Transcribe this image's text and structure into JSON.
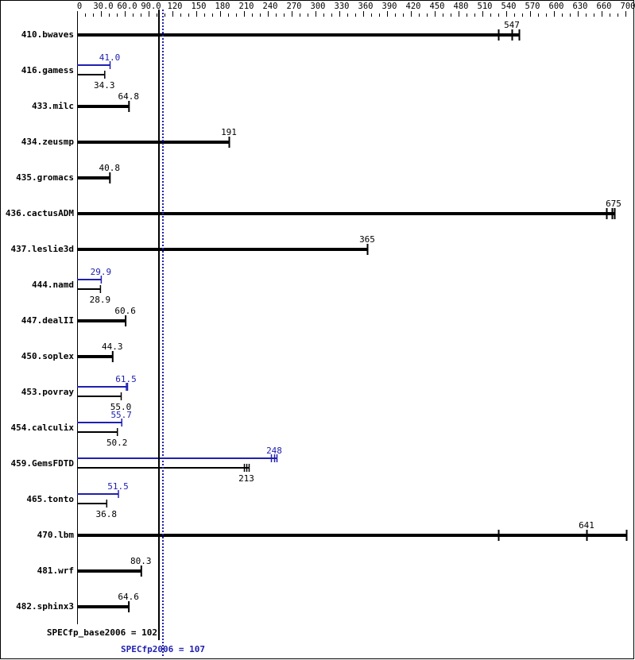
{
  "chart_data": {
    "type": "bar",
    "orientation": "horizontal",
    "xlim": [
      0,
      700
    ],
    "axis_position": "top",
    "axis_ticks": [
      "0",
      "30.0",
      "60.0",
      "90.0",
      "120",
      "150",
      "180",
      "210",
      "240",
      "270",
      "300",
      "330",
      "360",
      "390",
      "420",
      "450",
      "480",
      "510",
      "540",
      "570",
      "600",
      "630",
      "660",
      "700"
    ],
    "colors": {
      "base": "#000000",
      "peak": "#2020b0"
    },
    "benchmarks": [
      {
        "name": "410.bwaves",
        "base": 547,
        "base_label": "547",
        "base_runs": [
          530,
          547,
          556
        ]
      },
      {
        "name": "416.gamess",
        "base": 34.3,
        "base_label": "34.3",
        "peak": 41.0,
        "peak_label": "41.0"
      },
      {
        "name": "433.milc",
        "base": 64.8,
        "base_label": "64.8"
      },
      {
        "name": "434.zeusmp",
        "base": 191,
        "base_label": "191"
      },
      {
        "name": "435.gromacs",
        "base": 40.8,
        "base_label": "40.8"
      },
      {
        "name": "436.cactusADM",
        "base": 675,
        "base_label": "675",
        "base_runs": [
          666,
          673,
          676
        ]
      },
      {
        "name": "437.leslie3d",
        "base": 365,
        "base_label": "365"
      },
      {
        "name": "444.namd",
        "base": 28.9,
        "base_label": "28.9",
        "peak": 29.9,
        "peak_label": "29.9"
      },
      {
        "name": "447.dealII",
        "base": 60.6,
        "base_label": "60.6"
      },
      {
        "name": "450.soplex",
        "base": 44.3,
        "base_label": "44.3"
      },
      {
        "name": "453.povray",
        "base": 55.0,
        "base_label": "55.0",
        "peak": 61.5,
        "peak_label": "61.5",
        "peak_runs": [
          61.5,
          63
        ]
      },
      {
        "name": "454.calculix",
        "base": 50.2,
        "base_label": "50.2",
        "peak": 55.7,
        "peak_label": "55.7"
      },
      {
        "name": "459.GemsFDTD",
        "base": 213,
        "base_label": "213",
        "base_runs": [
          210,
          213,
          216
        ],
        "peak": 248,
        "peak_label": "248",
        "peak_runs": [
          244,
          248,
          251
        ]
      },
      {
        "name": "465.tonto",
        "base": 36.8,
        "base_label": "36.8",
        "peak": 51.5,
        "peak_label": "51.5"
      },
      {
        "name": "470.lbm",
        "base": 641,
        "base_label": "641",
        "base_runs": [
          530,
          641,
          691
        ]
      },
      {
        "name": "481.wrf",
        "base": 80.3,
        "base_label": "80.3"
      },
      {
        "name": "482.sphinx3",
        "base": 64.6,
        "base_label": "64.6"
      }
    ],
    "reference_lines": [
      {
        "label": "SPECfp_base2006 = 102",
        "value": 102,
        "style": "solid",
        "color": "#000000"
      },
      {
        "label": "SPECfp2006 = 107",
        "value": 107,
        "style": "dotted",
        "color": "#2020b0"
      }
    ]
  }
}
